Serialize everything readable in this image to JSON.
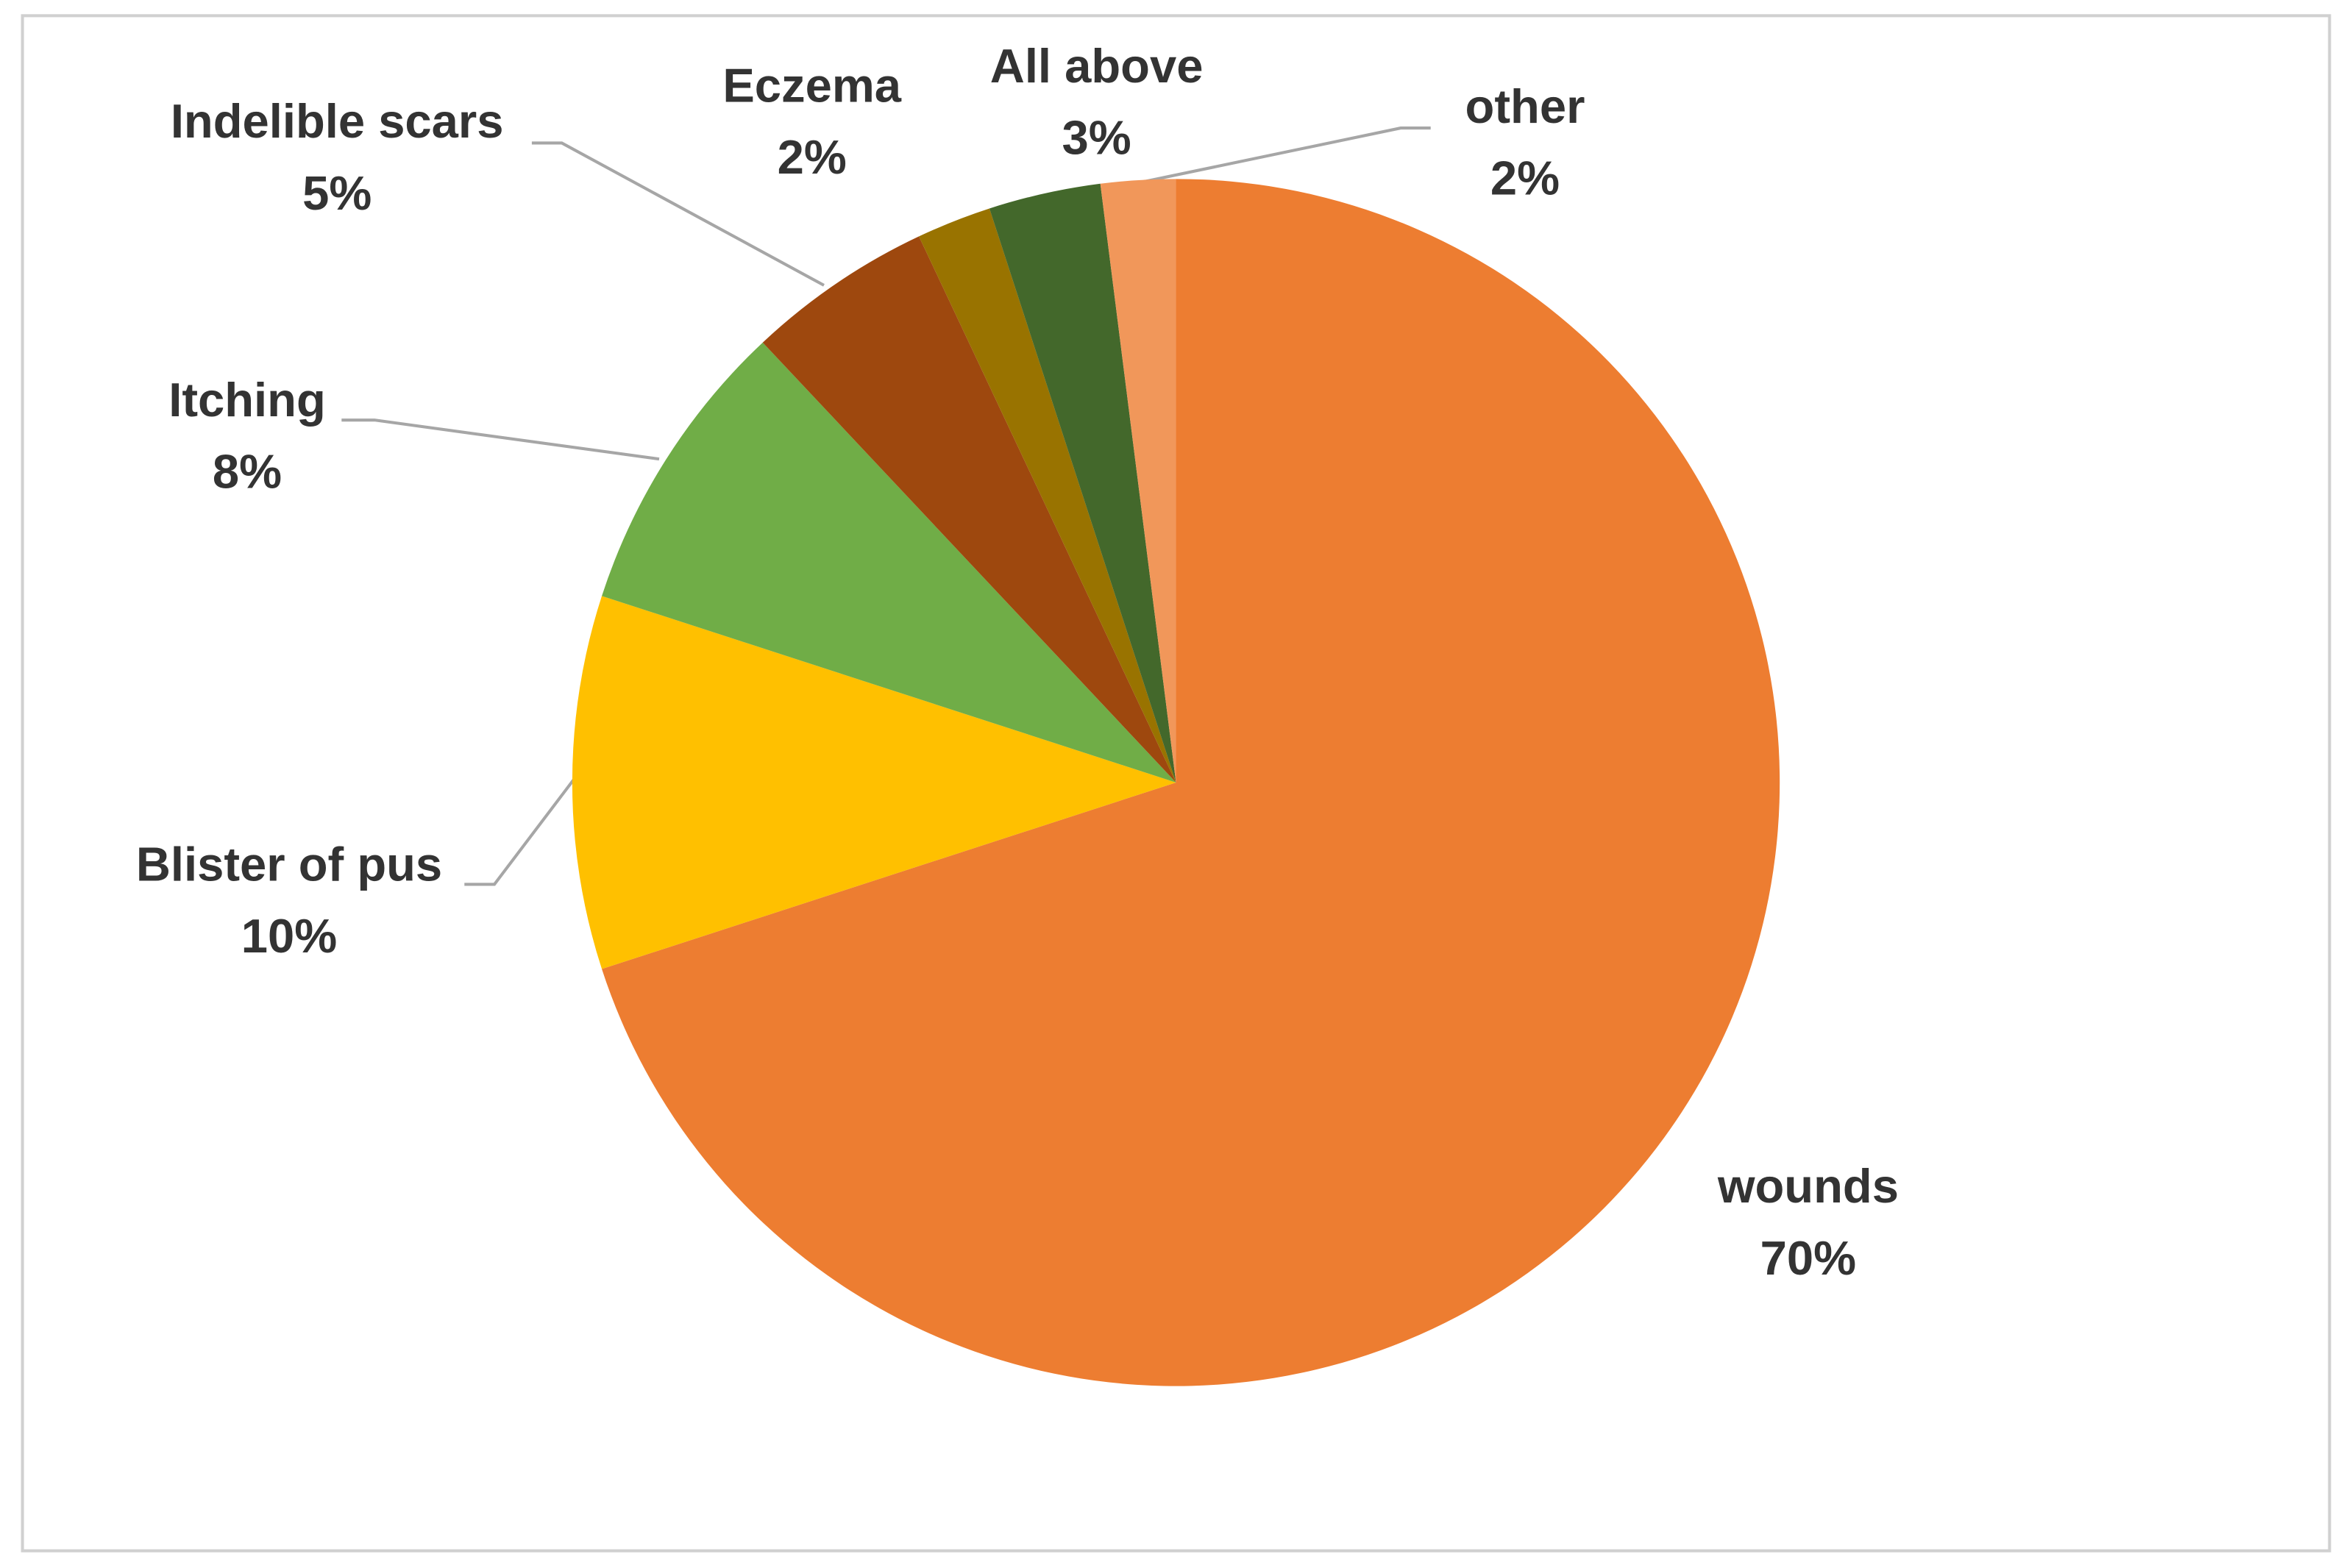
{
  "chart_data": {
    "type": "pie",
    "categories": [
      "wounds",
      "Blister of pus",
      "Itching",
      "Indelible scars",
      "Eczema",
      "All above",
      "other"
    ],
    "values": [
      70,
      10,
      8,
      5,
      2,
      3,
      2
    ],
    "value_labels": [
      "70%",
      "10%",
      "8%",
      "5%",
      "2%",
      "3%",
      "2%"
    ],
    "colors": [
      "#ED7D31",
      "#FFC000",
      "#70AD47",
      "#9E480E",
      "#997300",
      "#43682B",
      "#F1975A"
    ]
  }
}
